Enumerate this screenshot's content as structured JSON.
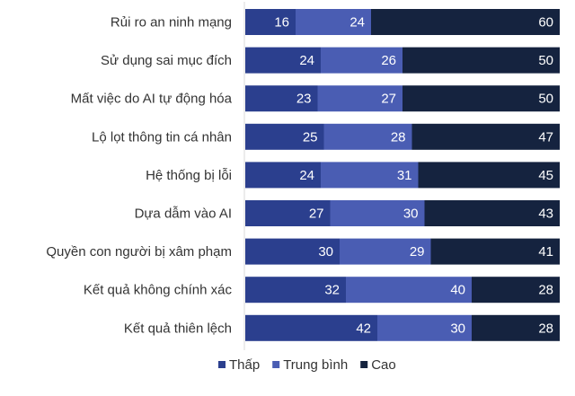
{
  "chart_data": {
    "type": "bar",
    "orientation": "horizontal",
    "stacked": true,
    "categories": [
      "Rủi ro an ninh mạng",
      "Sử dụng sai mục đích",
      "Mất việc do AI tự động hóa",
      "Lộ lọt thông tin cá nhân",
      "Hệ thống bị lỗi",
      "Dựa dẫm vào AI",
      "Quyền con người bị xâm phạm",
      "Kết quả không chính xác",
      "Kết quả thiên lệch"
    ],
    "series": [
      {
        "name": "Thấp",
        "color": "#2b3f8e",
        "values": [
          16,
          24,
          23,
          25,
          24,
          27,
          30,
          32,
          42
        ]
      },
      {
        "name": "Trung bình",
        "color": "#4a5db3",
        "values": [
          24,
          26,
          27,
          28,
          31,
          30,
          29,
          40,
          30
        ]
      },
      {
        "name": "Cao",
        "color": "#15233f",
        "values": [
          60,
          50,
          50,
          47,
          45,
          43,
          41,
          28,
          28
        ]
      }
    ],
    "xlim": [
      0,
      100
    ],
    "legend": "bottom",
    "grid": false
  }
}
